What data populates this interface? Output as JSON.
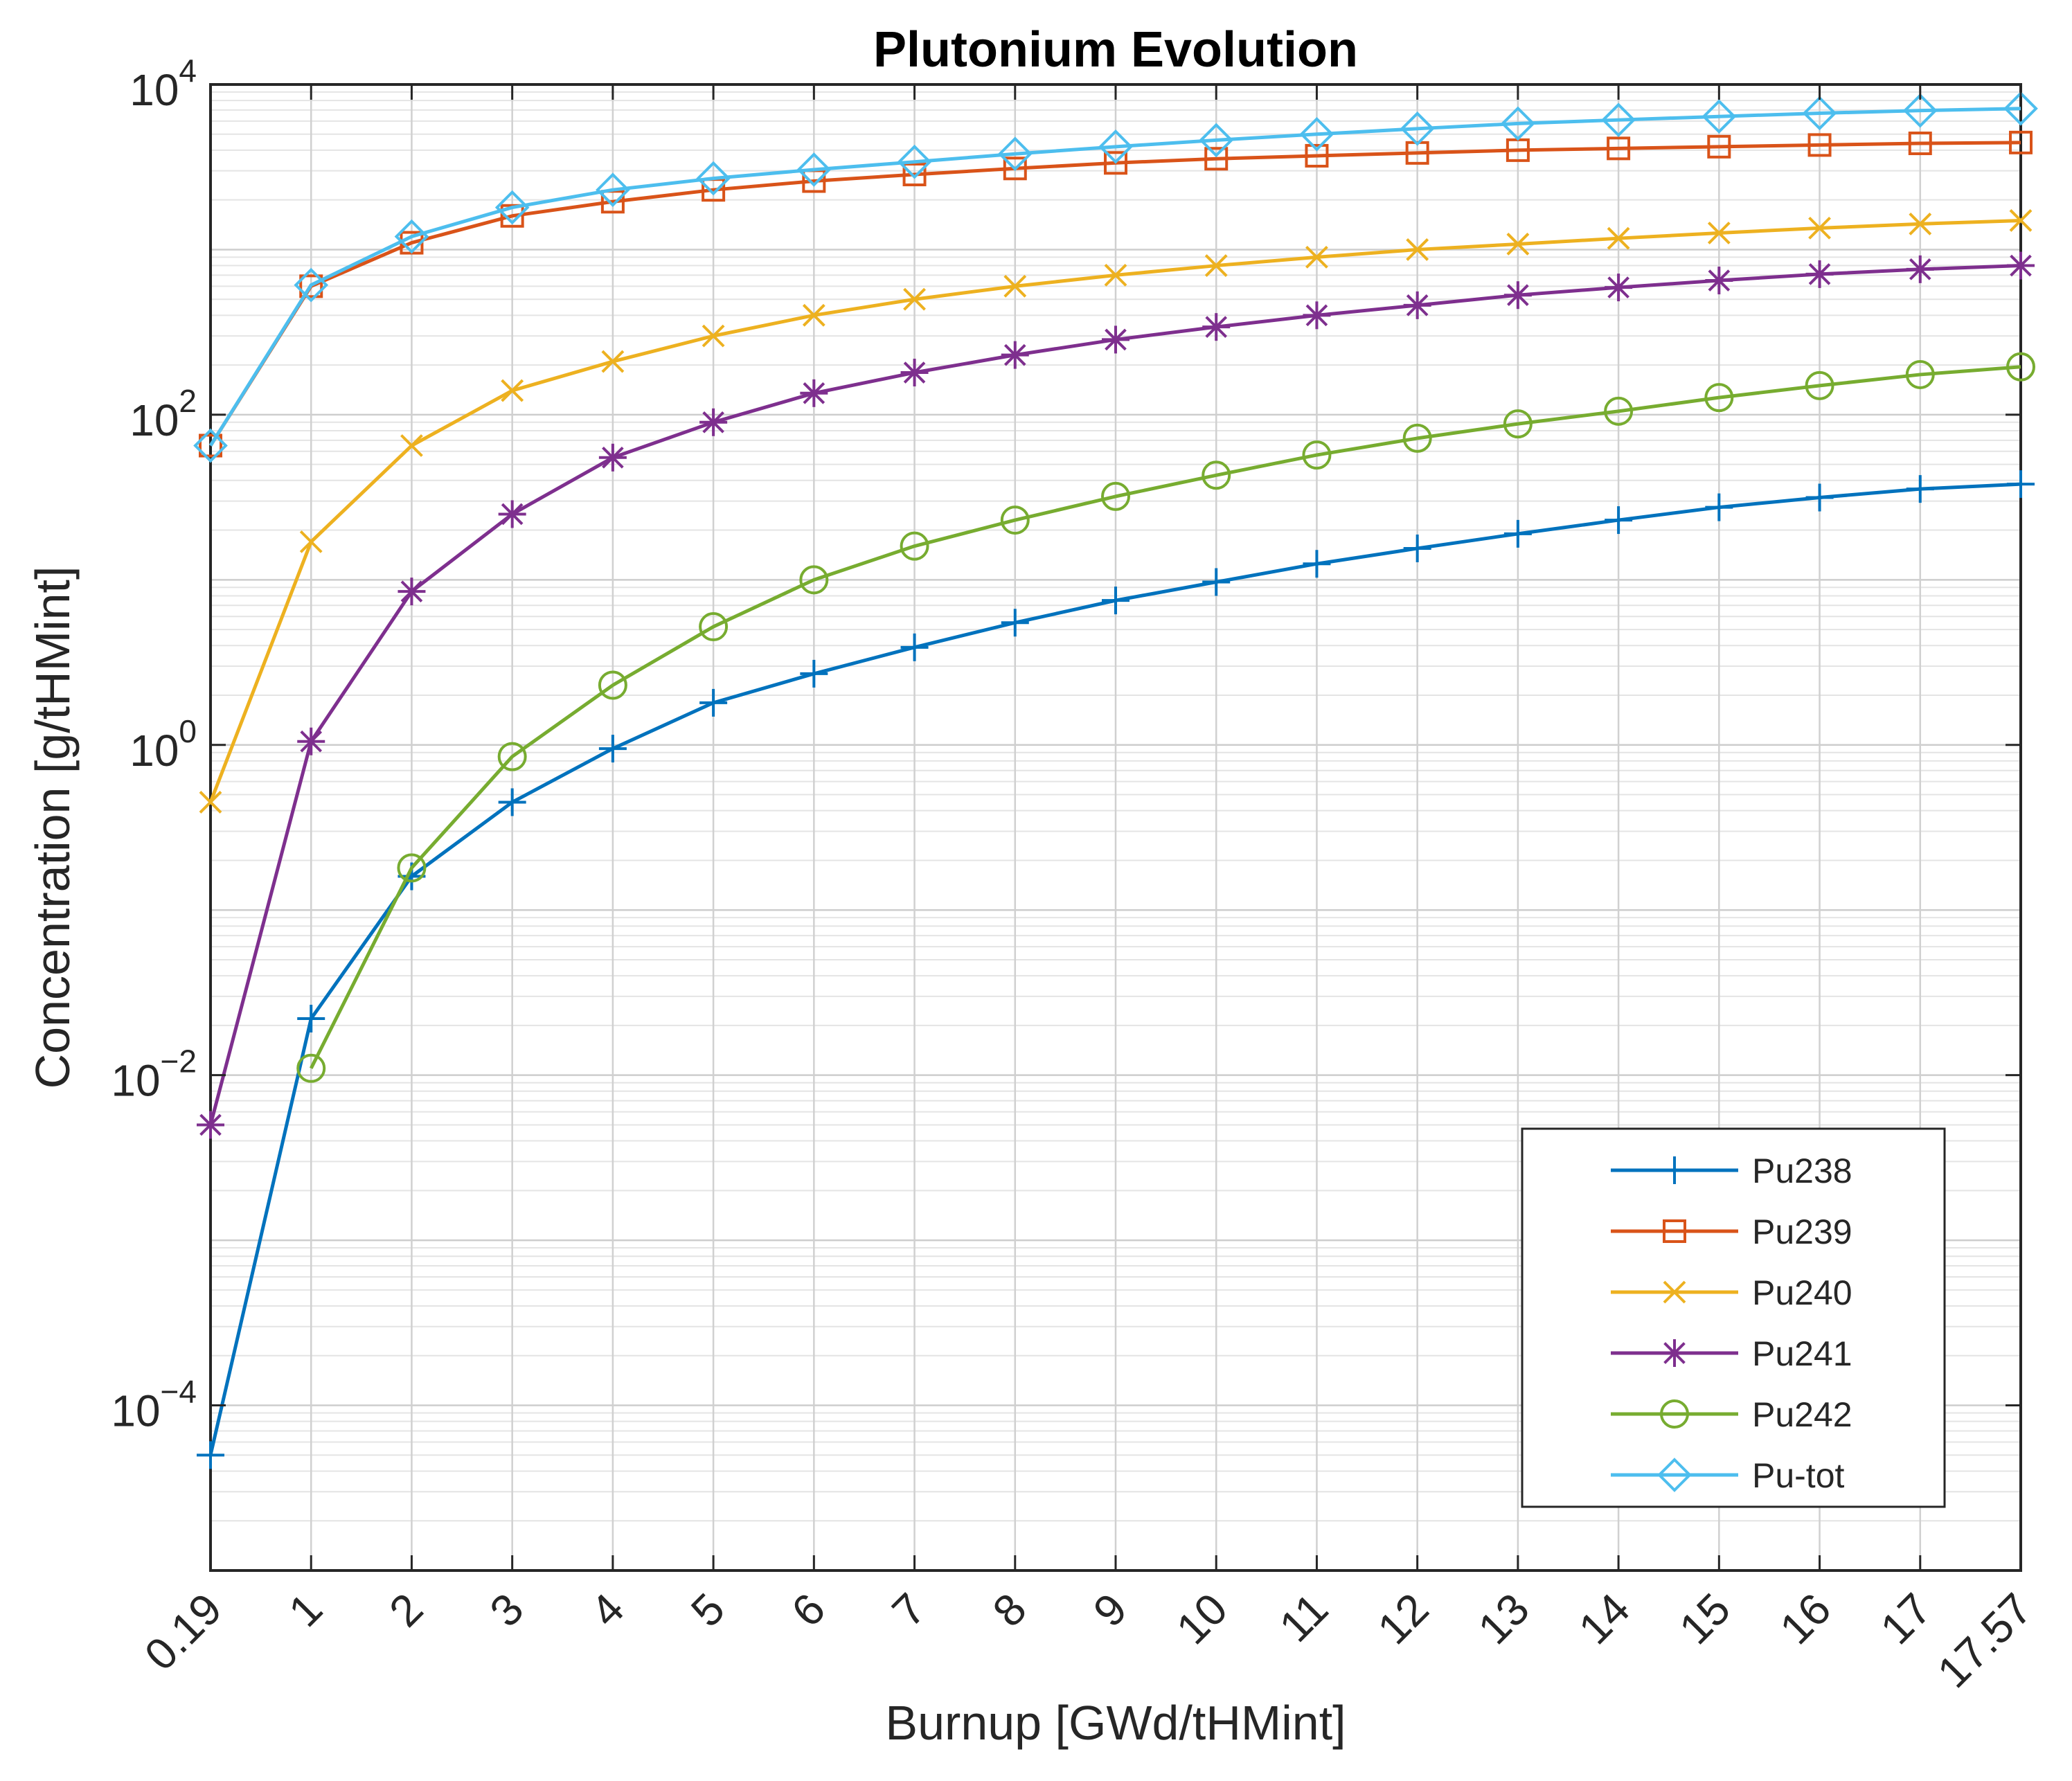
{
  "chart_data": {
    "type": "line",
    "title": "Plutonium Evolution",
    "xlabel": "Burnup [GWd/tHMint]",
    "ylabel": "Concentration [g/tHMint]",
    "x_scale": "categorical",
    "y_scale": "log",
    "ylim": [
      1e-05,
      10000
    ],
    "grid": true,
    "minor_grid": true,
    "legend_location": "bottom-right",
    "categories": [
      "0.19",
      "1",
      "2",
      "3",
      "4",
      "5",
      "6",
      "7",
      "8",
      "9",
      "10",
      "11",
      "12",
      "13",
      "14",
      "15",
      "16",
      "17",
      "17.57"
    ],
    "y_ticks": [
      {
        "value": 0.0001,
        "base": "10",
        "exp": "−4"
      },
      {
        "value": 0.01,
        "base": "10",
        "exp": "−2"
      },
      {
        "value": 1,
        "base": "10",
        "exp": "0"
      },
      {
        "value": 100,
        "base": "10",
        "exp": "2"
      },
      {
        "value": 10000,
        "base": "10",
        "exp": "4"
      }
    ],
    "series": [
      {
        "name": "Pu238",
        "color": "#0072BD",
        "marker": "plus",
        "values": [
          5e-05,
          0.022,
          0.16,
          0.45,
          0.95,
          1.8,
          2.7,
          3.9,
          5.5,
          7.5,
          9.7,
          12.5,
          15.5,
          19,
          23,
          27.5,
          31.5,
          35.5,
          38
        ]
      },
      {
        "name": "Pu239",
        "color": "#D95319",
        "marker": "square",
        "values": [
          65,
          600,
          1100,
          1600,
          1950,
          2300,
          2600,
          2850,
          3100,
          3350,
          3550,
          3700,
          3850,
          4000,
          4100,
          4200,
          4300,
          4400,
          4450
        ]
      },
      {
        "name": "Pu240",
        "color": "#EDB120",
        "marker": "x",
        "values": [
          0.45,
          17,
          65,
          140,
          210,
          300,
          400,
          500,
          600,
          700,
          800,
          900,
          1000,
          1080,
          1170,
          1260,
          1350,
          1430,
          1500
        ]
      },
      {
        "name": "Pu241",
        "color": "#7E2F8E",
        "marker": "asterisk",
        "values": [
          0.005,
          1.05,
          8.5,
          25,
          55,
          90,
          135,
          180,
          230,
          285,
          340,
          400,
          460,
          530,
          590,
          650,
          710,
          760,
          800
        ]
      },
      {
        "name": "Pu242",
        "color": "#77AC30",
        "marker": "circle",
        "values": [
          0,
          0.011,
          0.18,
          0.85,
          2.3,
          5.2,
          10,
          16,
          23,
          32,
          43,
          57,
          72,
          88,
          105,
          127,
          150,
          175,
          195
        ]
      },
      {
        "name": "Pu-tot",
        "color": "#4DBEEE",
        "marker": "diamond",
        "values": [
          65,
          610,
          1200,
          1800,
          2300,
          2700,
          3050,
          3400,
          3800,
          4200,
          4600,
          5000,
          5400,
          5800,
          6100,
          6400,
          6700,
          6950,
          7150
        ]
      }
    ]
  }
}
